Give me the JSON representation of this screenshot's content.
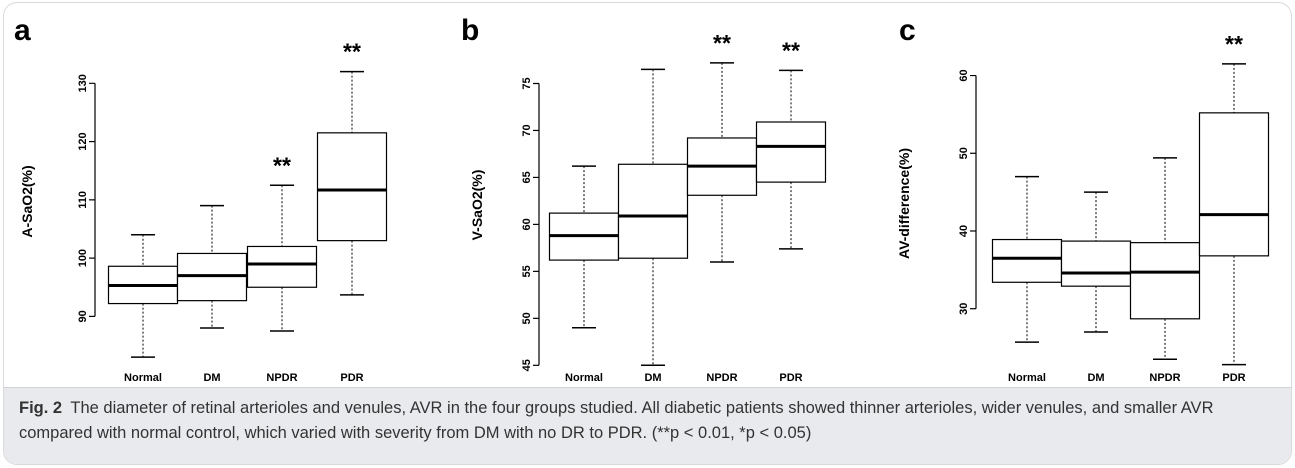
{
  "chart_data": [
    {
      "type": "boxplot",
      "panel_label": "a",
      "ylabel": "A-SaO2(%)",
      "ylim": [
        82,
        134
      ],
      "yticks": [
        90,
        100,
        110,
        120,
        130
      ],
      "categories": [
        "Normal",
        "DM",
        "NPDR",
        "PDR"
      ],
      "boxes": [
        {
          "whisker_low": 83,
          "q1": 92.2,
          "median": 95.3,
          "q3": 98.6,
          "whisker_high": 104
        },
        {
          "whisker_low": 88,
          "q1": 92.7,
          "median": 97,
          "q3": 100.8,
          "whisker_high": 109
        },
        {
          "whisker_low": 87.5,
          "q1": 95,
          "median": 99,
          "q3": 102,
          "whisker_high": 112.5
        },
        {
          "whisker_low": 93.7,
          "q1": 103,
          "median": 111.7,
          "q3": 121.5,
          "whisker_high": 132
        }
      ],
      "significance": [
        "",
        "",
        "**",
        "**"
      ]
    },
    {
      "type": "boxplot",
      "panel_label": "b",
      "ylabel": "V-SaO2(%)",
      "ylim": [
        44.5,
        77.5
      ],
      "yticks": [
        45,
        50,
        55,
        60,
        65,
        70,
        75
      ],
      "categories": [
        "Normal",
        "DM",
        "NPDR",
        "PDR"
      ],
      "boxes": [
        {
          "whisker_low": 49,
          "q1": 56.2,
          "median": 58.8,
          "q3": 61.2,
          "whisker_high": 66.2
        },
        {
          "whisker_low": 45,
          "q1": 56.4,
          "median": 60.9,
          "q3": 66.4,
          "whisker_high": 76.5
        },
        {
          "whisker_low": 56,
          "q1": 63.1,
          "median": 66.2,
          "q3": 69.2,
          "whisker_high": 77.2
        },
        {
          "whisker_low": 57.4,
          "q1": 64.5,
          "median": 68.3,
          "q3": 70.9,
          "whisker_high": 76.4
        }
      ],
      "significance": [
        "",
        "",
        "**",
        "**"
      ]
    },
    {
      "type": "boxplot",
      "panel_label": "c",
      "ylabel": "AV-difference(%)",
      "ylim": [
        22.5,
        62
      ],
      "yticks": [
        30,
        40,
        50,
        60
      ],
      "categories": [
        "Normal",
        "DM",
        "NPDR",
        "PDR"
      ],
      "boxes": [
        {
          "whisker_low": 25.7,
          "q1": 33.4,
          "median": 36.5,
          "q3": 38.9,
          "whisker_high": 47
        },
        {
          "whisker_low": 27,
          "q1": 32.9,
          "median": 34.6,
          "q3": 38.7,
          "whisker_high": 45
        },
        {
          "whisker_low": 23.5,
          "q1": 28.7,
          "median": 34.7,
          "q3": 38.5,
          "whisker_high": 49.4
        },
        {
          "whisker_low": 22.8,
          "q1": 36.8,
          "median": 42.1,
          "q3": 55.2,
          "whisker_high": 61.5
        }
      ],
      "significance": [
        "",
        "",
        "",
        "**"
      ]
    }
  ],
  "caption": {
    "fig_label": "Fig. 2",
    "text": "The diameter of retinal arterioles and venules, AVR in the four groups studied. All diabetic patients showed thinner arterioles, wider venules, and smaller AVR compared with normal control, which varied with severity from DM with no DR to PDR. (**p < 0.01, *p < 0.05)"
  }
}
